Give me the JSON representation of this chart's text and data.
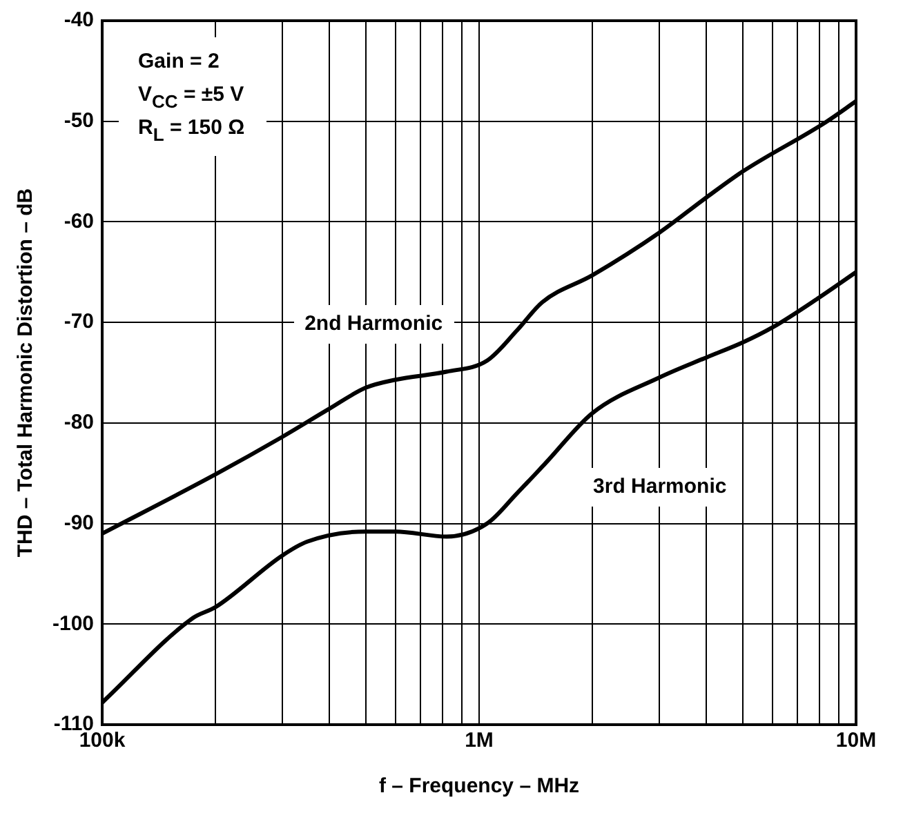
{
  "chart_data": {
    "type": "line",
    "xlabel": "f – Frequency – MHz",
    "ylabel": "THD – Total Harmonic Distortion – dB",
    "log": "x",
    "grid": true,
    "legend": false,
    "marker": "none",
    "line_style": "solid",
    "xlim": [
      100000,
      10000000
    ],
    "xticks": [
      {
        "value": 100000,
        "label": "100k"
      },
      {
        "value": 200000,
        "label": null
      },
      {
        "value": 300000,
        "label": null
      },
      {
        "value": 400000,
        "label": null
      },
      {
        "value": 500000,
        "label": null
      },
      {
        "value": 600000,
        "label": null
      },
      {
        "value": 700000,
        "label": null
      },
      {
        "value": 800000,
        "label": null
      },
      {
        "value": 900000,
        "label": null
      },
      {
        "value": 1000000,
        "label": "1M"
      },
      {
        "value": 2000000,
        "label": null
      },
      {
        "value": 3000000,
        "label": null
      },
      {
        "value": 4000000,
        "label": null
      },
      {
        "value": 5000000,
        "label": null
      },
      {
        "value": 6000000,
        "label": null
      },
      {
        "value": 7000000,
        "label": null
      },
      {
        "value": 8000000,
        "label": null
      },
      {
        "value": 9000000,
        "label": null
      },
      {
        "value": 10000000,
        "label": "10M"
      }
    ],
    "ylim": [
      -110,
      -40
    ],
    "yticks": [
      -110,
      -100,
      -90,
      -80,
      -70,
      -60,
      -50,
      -40
    ],
    "series": [
      {
        "name": "2nd Harmonic",
        "color": "#000000",
        "x": [
          100000,
          200000,
          300000,
          400000,
          500000,
          600000,
          820000,
          1050000,
          1260000,
          1470000,
          2000000,
          3000000,
          4000000,
          5000000,
          8300000,
          10000000
        ],
        "values": [
          -91,
          -85.1,
          -81.4,
          -78.6,
          -76.5,
          -75.7,
          -74.9,
          -73.8,
          -70.8,
          -68,
          -65.3,
          -61.1,
          -57.6,
          -55,
          -50.1,
          -48
        ]
      },
      {
        "name": "3rd Harmonic",
        "color": "#000000",
        "x": [
          100000,
          174000,
          200000,
          300000,
          350000,
          500000,
          600000,
          820000,
          1050000,
          1260000,
          1500000,
          2000000,
          3000000,
          4000000,
          5000000,
          6000000,
          8000000,
          10000000
        ],
        "values": [
          -107.8,
          -99.4,
          -98.3,
          -93.2,
          -91.8,
          -90.8,
          -90.8,
          -91.3,
          -90,
          -87,
          -84,
          -79,
          -75.5,
          -73.5,
          -72,
          -70.5,
          -67.5,
          -65
        ]
      }
    ],
    "annotations": [
      "Gain = 2",
      "V$_{CC}$ = ±5 V",
      "R$_{L}$ = 150 Ω"
    ]
  }
}
